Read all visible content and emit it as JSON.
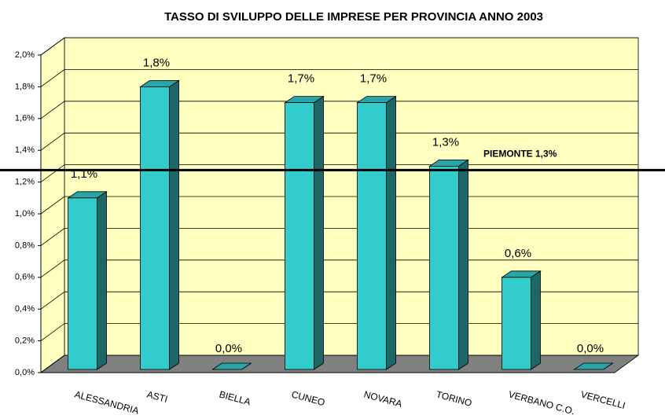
{
  "chart_data": {
    "type": "bar3d",
    "title": "TASSO DI SVILUPPO DELLE IMPRESE PER PROVINCIA ANNO 2003",
    "categories": [
      "ALESSANDRIA",
      "ASTI",
      "BIELLA",
      "CUNEO",
      "NOVARA",
      "TORINO",
      "VERBANO C.O.",
      "VERCELLI"
    ],
    "values": [
      1.1,
      1.8,
      0.0,
      1.7,
      1.7,
      1.3,
      0.6,
      0.0
    ],
    "value_labels": [
      "1,1%",
      "1,8%",
      "0,0%",
      "1,7%",
      "1,7%",
      "1,3%",
      "0,6%",
      "0,0%"
    ],
    "color": "#33cccc",
    "ylim": [
      0,
      2
    ],
    "yticks": [
      {
        "value": 0,
        "label": "0,0%"
      },
      {
        "value": 0.2,
        "label": "0,2%"
      },
      {
        "value": 0.4,
        "label": "0,4%"
      },
      {
        "value": 0.6,
        "label": "0,6%"
      },
      {
        "value": 0.8,
        "label": "0,8%"
      },
      {
        "value": 1.0,
        "label": "1,0%"
      },
      {
        "value": 1.2,
        "label": "1,2%"
      },
      {
        "value": 1.4,
        "label": "1,4%"
      },
      {
        "value": 1.6,
        "label": "1,6%"
      },
      {
        "value": 1.8,
        "label": "1,8%"
      },
      {
        "value": 2.0,
        "label": "2,0%"
      }
    ],
    "grid": true,
    "reference_line": {
      "value": 1.3,
      "label": "PIEMONTE 1,3%"
    }
  }
}
